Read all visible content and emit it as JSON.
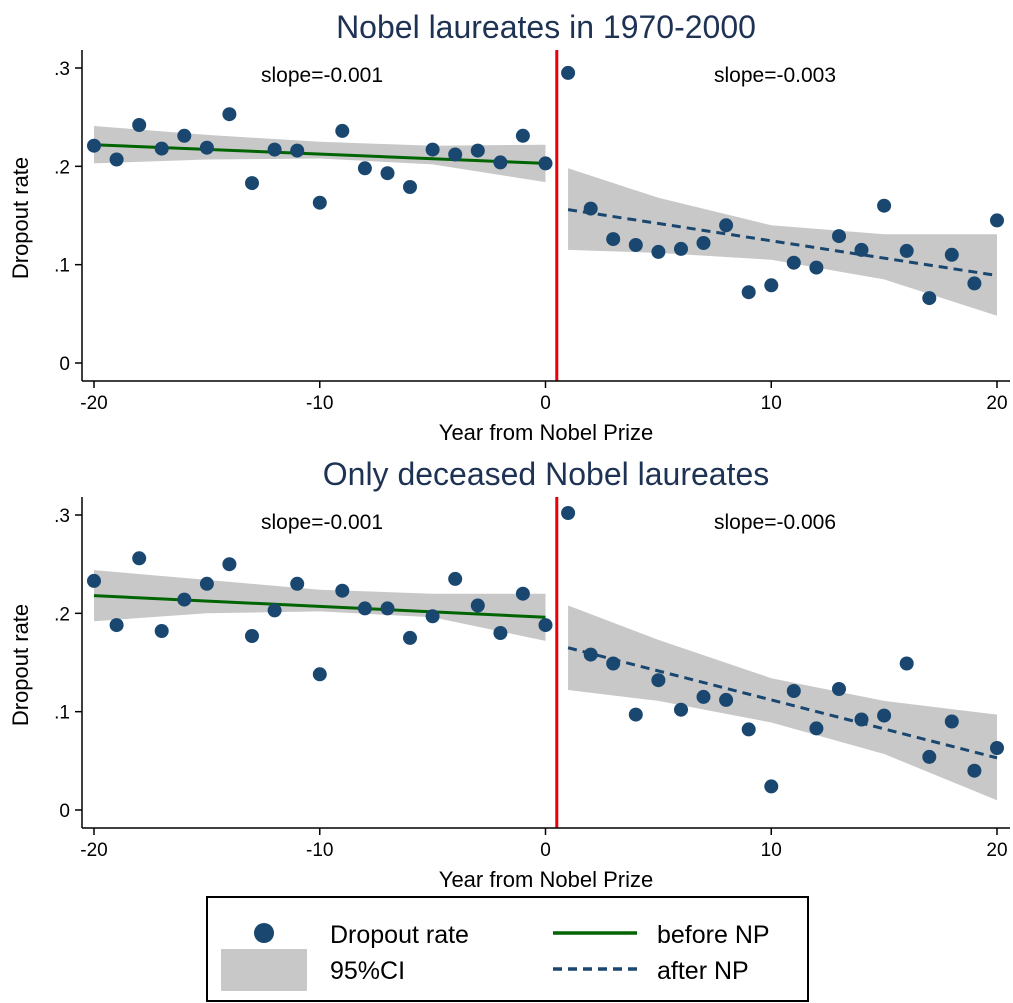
{
  "colors": {
    "points": "#1a476f",
    "ci": "#c8c8c8",
    "before": "#006400",
    "after": "#1a476f",
    "divider": "#e8000b",
    "title": "#1e3354"
  },
  "legend": {
    "points": "Dropout rate",
    "ci": "95%CI",
    "before": "before NP",
    "after": "after NP"
  },
  "chart_data": [
    {
      "type": "scatter",
      "title": "Nobel laureates in 1970-2000",
      "xlabel": "Year from Nobel Prize",
      "ylabel": "Dropout rate",
      "xlim": [
        -20,
        20
      ],
      "ylim": [
        0,
        0.3
      ],
      "xticks": [
        -20,
        -10,
        0,
        10,
        20
      ],
      "xtick_labels": [
        "-20",
        "-10",
        "0",
        "10",
        "20"
      ],
      "yticks": [
        0,
        0.1,
        0.2,
        0.3
      ],
      "ytick_labels": [
        "0",
        ".1",
        ".2",
        ".3"
      ],
      "divider_x": 0.5,
      "slope_before_label": "slope=-0.001",
      "slope_after_label": "slope=-0.003",
      "points": {
        "x": [
          -20,
          -19,
          -18,
          -17,
          -16,
          -15,
          -14,
          -13,
          -12,
          -11,
          -10,
          -9,
          -8,
          -7,
          -6,
          -5,
          -4,
          -3,
          -2,
          -1,
          0,
          1,
          2,
          3,
          4,
          5,
          6,
          7,
          8,
          9,
          10,
          11,
          12,
          13,
          14,
          15,
          16,
          17,
          18,
          19,
          20
        ],
        "y": [
          0.221,
          0.207,
          0.242,
          0.218,
          0.231,
          0.219,
          0.253,
          0.183,
          0.217,
          0.216,
          0.163,
          0.236,
          0.198,
          0.193,
          0.179,
          0.217,
          0.212,
          0.216,
          0.204,
          0.231,
          0.203,
          0.295,
          0.157,
          0.126,
          0.12,
          0.113,
          0.116,
          0.122,
          0.14,
          0.072,
          0.079,
          0.102,
          0.097,
          0.129,
          0.115,
          0.16,
          0.114,
          0.066,
          0.11,
          0.081,
          0.145
        ]
      },
      "fit_before": {
        "x": [
          -20,
          0
        ],
        "y": [
          0.222,
          0.203
        ]
      },
      "fit_after": {
        "x": [
          1,
          20
        ],
        "y": [
          0.156,
          0.089
        ]
      },
      "ci_before": {
        "x": [
          -20,
          -15,
          -10,
          -5,
          0
        ],
        "lower": [
          0.203,
          0.207,
          0.208,
          0.202,
          0.184
        ],
        "upper": [
          0.241,
          0.232,
          0.225,
          0.221,
          0.222
        ]
      },
      "ci_after": {
        "x": [
          1,
          5,
          10,
          15,
          20
        ],
        "lower": [
          0.115,
          0.112,
          0.105,
          0.085,
          0.048
        ],
        "upper": [
          0.198,
          0.168,
          0.14,
          0.131,
          0.131
        ]
      }
    },
    {
      "type": "scatter",
      "title": "Only deceased Nobel laureates",
      "xlabel": "Year from Nobel Prize",
      "ylabel": "Dropout rate",
      "xlim": [
        -20,
        20
      ],
      "ylim": [
        0,
        0.3
      ],
      "xticks": [
        -20,
        -10,
        0,
        10,
        20
      ],
      "xtick_labels": [
        "-20",
        "-10",
        "0",
        "10",
        "20"
      ],
      "yticks": [
        0,
        0.1,
        0.2,
        0.3
      ],
      "ytick_labels": [
        "0",
        ".1",
        ".2",
        ".3"
      ],
      "divider_x": 0.5,
      "slope_before_label": "slope=-0.001",
      "slope_after_label": "slope=-0.006",
      "points": {
        "x": [
          -20,
          -19,
          -18,
          -17,
          -16,
          -15,
          -14,
          -13,
          -12,
          -11,
          -10,
          -9,
          -8,
          -7,
          -6,
          -5,
          -4,
          -3,
          -2,
          -1,
          0,
          1,
          2,
          3,
          4,
          5,
          6,
          7,
          8,
          9,
          10,
          11,
          12,
          13,
          14,
          15,
          16,
          17,
          18,
          19,
          20
        ],
        "y": [
          0.233,
          0.188,
          0.256,
          0.182,
          0.214,
          0.23,
          0.25,
          0.177,
          0.203,
          0.23,
          0.138,
          0.223,
          0.205,
          0.205,
          0.175,
          0.197,
          0.235,
          0.208,
          0.18,
          0.22,
          0.188,
          0.302,
          0.158,
          0.149,
          0.097,
          0.132,
          0.102,
          0.115,
          0.112,
          0.082,
          0.024,
          0.121,
          0.083,
          0.123,
          0.092,
          0.096,
          0.149,
          0.054,
          0.09,
          0.04,
          0.063
        ]
      },
      "fit_before": {
        "x": [
          -20,
          0
        ],
        "y": [
          0.218,
          0.196
        ]
      },
      "fit_after": {
        "x": [
          1,
          20
        ],
        "y": [
          0.165,
          0.053
        ]
      },
      "ci_before": {
        "x": [
          -20,
          -15,
          -10,
          -5,
          0
        ],
        "lower": [
          0.192,
          0.2,
          0.202,
          0.196,
          0.172
        ],
        "upper": [
          0.244,
          0.234,
          0.224,
          0.22,
          0.22
        ]
      },
      "ci_after": {
        "x": [
          1,
          5,
          10,
          15,
          20
        ],
        "lower": [
          0.122,
          0.111,
          0.089,
          0.057,
          0.01
        ],
        "upper": [
          0.208,
          0.173,
          0.134,
          0.111,
          0.097
        ]
      }
    }
  ]
}
